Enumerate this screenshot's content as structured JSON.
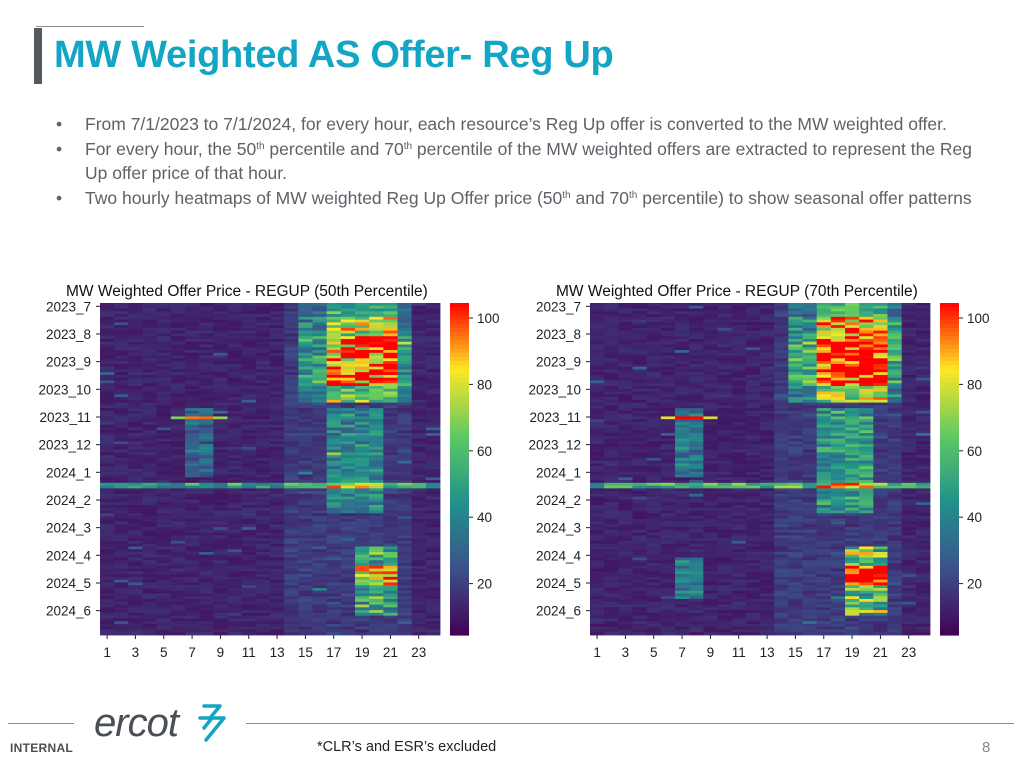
{
  "slide": {
    "title": "MW Weighted AS Offer- Reg Up",
    "bullets": [
      {
        "segments": [
          {
            "t": "From 7/1/2023 to 7/1/2024, for every hour, each resource’s Reg Up offer is converted to the MW weighted offer."
          }
        ]
      },
      {
        "segments": [
          {
            "t": "For every hour, the 50"
          },
          {
            "t": "th",
            "sup": true
          },
          {
            "t": " percentile and 70"
          },
          {
            "t": "th",
            "sup": true
          },
          {
            "t": " percentile of the MW weighted offers are extracted to represent the Reg Up offer price of that hour."
          }
        ]
      },
      {
        "segments": [
          {
            "t": "Two hourly heatmaps of MW weighted Reg Up Offer price (50"
          },
          {
            "t": "th",
            "sup": true
          },
          {
            "t": " and 70"
          },
          {
            "t": "th",
            "sup": true
          },
          {
            "t": " percentile) to show seasonal offer patterns"
          }
        ]
      }
    ]
  },
  "footer": {
    "logo_text": "ercot",
    "classification": "INTERNAL",
    "footnote": "*CLR’s and ESR’s excluded",
    "page_number": "8"
  },
  "chart_data": [
    {
      "type": "heatmap",
      "title": "MW Weighted Offer Price - REGUP (50th Percentile)",
      "x_tick_labels": [
        "1",
        "3",
        "5",
        "7",
        "9",
        "11",
        "13",
        "15",
        "17",
        "19",
        "21",
        "23"
      ],
      "y_tick_labels": [
        "2023_7",
        "2023_8",
        "2023_9",
        "2023_10",
        "2023_11",
        "2023_12",
        "2024_1",
        "2024_2",
        "2024_3",
        "2024_4",
        "2024_5",
        "2024_6"
      ],
      "x_range": [
        1,
        24
      ],
      "colorbar_ticks": [
        20,
        40,
        60,
        80,
        100
      ],
      "colorbar_range": [
        0,
        100
      ],
      "colormap": [
        "#440154",
        "#3b528b",
        "#21918c",
        "#5ec962",
        "#fde725",
        "#ff0000"
      ]
    },
    {
      "type": "heatmap",
      "title": "MW Weighted Offer Price - REGUP (70th Percentile)",
      "x_tick_labels": [
        "1",
        "3",
        "5",
        "7",
        "9",
        "11",
        "13",
        "15",
        "17",
        "19",
        "21",
        "23"
      ],
      "y_tick_labels": [
        "2023_7",
        "2023_8",
        "2023_9",
        "2023_10",
        "2023_11",
        "2023_12",
        "2024_1",
        "2024_2",
        "2024_3",
        "2024_4",
        "2024_5",
        "2024_6"
      ],
      "x_range": [
        1,
        24
      ],
      "colorbar_ticks": [
        20,
        40,
        60,
        80,
        100
      ],
      "colorbar_range": [
        0,
        100
      ],
      "colormap": [
        "#440154",
        "#3b528b",
        "#21918c",
        "#5ec962",
        "#fde725",
        "#ff0000"
      ]
    }
  ]
}
